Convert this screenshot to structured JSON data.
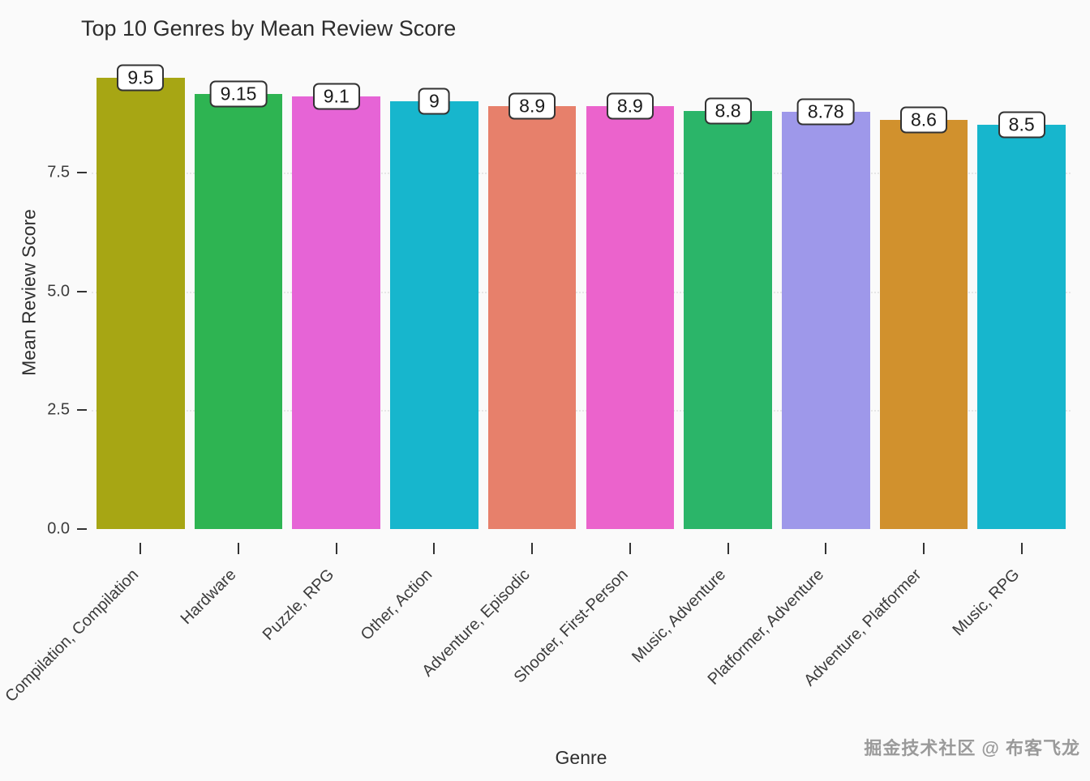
{
  "title": "Top 10 Genres by Mean Review Score",
  "axes": {
    "x_title": "Genre",
    "y_title": "Mean Review Score",
    "y_tick_labels": [
      "0.0",
      "2.5",
      "5.0",
      "7.5"
    ]
  },
  "watermark": "掘金技术社区 @ 布客飞龙",
  "chart_data": {
    "type": "bar",
    "title": "Top 10 Genres by Mean Review Score",
    "xlabel": "Genre",
    "ylabel": "Mean Review Score",
    "ylim": [
      0,
      9.9
    ],
    "grid": "horizontal dotted lines at y ticks",
    "legend_position": "none",
    "x_tick_rotation_deg": 45,
    "y_ticks": [
      0,
      2.5,
      5,
      7.5
    ],
    "categories": [
      "Compilation, Compilation",
      "Hardware",
      "Puzzle, RPG",
      "Other, Action",
      "Adventure, Episodic",
      "Shooter, First-Person",
      "Music, Adventure",
      "Platformer, Adventure",
      "Adventure, Platformer",
      "Music, RPG"
    ],
    "values": [
      9.5,
      9.15,
      9.1,
      9,
      8.9,
      8.9,
      8.8,
      8.78,
      8.6,
      8.5
    ],
    "value_labels": [
      "9.5",
      "9.15",
      "9.1",
      "9",
      "8.9",
      "8.9",
      "8.8",
      "8.78",
      "8.6",
      "8.5"
    ],
    "bar_colors": [
      "#a7a614",
      "#2eb452",
      "#e664d6",
      "#17b6cd",
      "#e7806b",
      "#eb63cc",
      "#2bb569",
      "#9e98ea",
      "#d1912d",
      "#17b6cd"
    ]
  }
}
